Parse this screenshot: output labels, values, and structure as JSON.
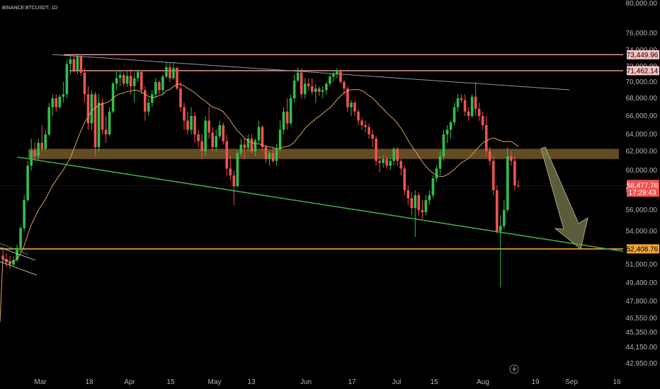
{
  "symbol": "BINANCE:BTCUSDT, 1D",
  "colors": {
    "background": "#000000",
    "up": "#26a69a",
    "up_bright": "#2fbf4a",
    "down": "#ef5350",
    "ma": "#d9a35a",
    "zone": "#b5893f",
    "support": "#f0a63a",
    "trendline_low": "#3fa84a",
    "trendline_high": "#9598a1",
    "level_line": "#f4a3a3",
    "arrow": "#7a7b4f",
    "axis_text": "#b2b5be"
  },
  "chart_data": {
    "type": "candlestick",
    "title": "",
    "xlabel": "",
    "ylabel": "",
    "ylim": [
      42000,
      80000
    ],
    "grid": false,
    "price_axis_ticks": [
      "80,000.00",
      "76,000.00",
      "74,000.00",
      "72,000.00",
      "70,000.00",
      "68,000.00",
      "66,000.00",
      "64,000.00",
      "62,000.00",
      "60,000.00",
      "58,000.00",
      "56,000.00",
      "54,000.00",
      "51,000.00",
      "49,400.00",
      "47,800.00",
      "46,550.00",
      "45,350.00",
      "44,150.00",
      "42,950.00"
    ],
    "date_axis_ticks": [
      "Mar",
      "18",
      "Apr",
      "15",
      "May",
      "13",
      "Jun",
      "17",
      "Jul",
      "15",
      "Aug",
      "19",
      "Sep",
      "16"
    ],
    "price_labels": {
      "level_high": "73,449.96",
      "level_mid": "71,462.14",
      "current_price": "58,477.76",
      "countdown": "17:29:43",
      "support": "52,408.76"
    },
    "resistance_zone": [
      61200,
      62300
    ],
    "support_level": 52408.76,
    "levels": [
      73449.96,
      71462.14
    ],
    "current_price": 58477.76,
    "ohlc": [
      {
        "o": 51800,
        "h": 52600,
        "l": 51200,
        "c": 51500
      },
      {
        "o": 51500,
        "h": 52000,
        "l": 50800,
        "c": 51200
      },
      {
        "o": 51200,
        "h": 51800,
        "l": 50600,
        "c": 51000
      },
      {
        "o": 51000,
        "h": 51700,
        "l": 50800,
        "c": 51400
      },
      {
        "o": 51400,
        "h": 52800,
        "l": 51200,
        "c": 52500
      },
      {
        "o": 52500,
        "h": 54500,
        "l": 52200,
        "c": 54300
      },
      {
        "o": 54300,
        "h": 57500,
        "l": 54000,
        "c": 57000
      },
      {
        "o": 57000,
        "h": 61000,
        "l": 56800,
        "c": 60500
      },
      {
        "o": 60500,
        "h": 63500,
        "l": 60000,
        "c": 62100
      },
      {
        "o": 62100,
        "h": 63000,
        "l": 61000,
        "c": 61500
      },
      {
        "o": 61500,
        "h": 63500,
        "l": 61000,
        "c": 63000
      },
      {
        "o": 63000,
        "h": 65000,
        "l": 62000,
        "c": 62300
      },
      {
        "o": 62300,
        "h": 64500,
        "l": 62000,
        "c": 64000
      },
      {
        "o": 64000,
        "h": 67500,
        "l": 63800,
        "c": 67000
      },
      {
        "o": 67000,
        "h": 68500,
        "l": 66000,
        "c": 68000
      },
      {
        "o": 68000,
        "h": 68500,
        "l": 66500,
        "c": 67000
      },
      {
        "o": 67000,
        "h": 68500,
        "l": 66800,
        "c": 68200
      },
      {
        "o": 68200,
        "h": 70000,
        "l": 67500,
        "c": 68500
      },
      {
        "o": 68500,
        "h": 72800,
        "l": 68000,
        "c": 72300
      },
      {
        "o": 72300,
        "h": 73450,
        "l": 71000,
        "c": 72900
      },
      {
        "o": 72900,
        "h": 73500,
        "l": 71200,
        "c": 71500
      },
      {
        "o": 71500,
        "h": 73400,
        "l": 71000,
        "c": 73200
      },
      {
        "o": 73200,
        "h": 73500,
        "l": 70800,
        "c": 71200
      },
      {
        "o": 71200,
        "h": 71800,
        "l": 67500,
        "c": 68500
      },
      {
        "o": 68500,
        "h": 69500,
        "l": 64500,
        "c": 65200
      },
      {
        "o": 65200,
        "h": 69000,
        "l": 64500,
        "c": 68500
      },
      {
        "o": 68500,
        "h": 68800,
        "l": 61500,
        "c": 62500
      },
      {
        "o": 62500,
        "h": 68500,
        "l": 62000,
        "c": 67500
      },
      {
        "o": 67500,
        "h": 68000,
        "l": 64000,
        "c": 64500
      },
      {
        "o": 64500,
        "h": 66000,
        "l": 63000,
        "c": 64000
      },
      {
        "o": 64000,
        "h": 67000,
        "l": 63800,
        "c": 66500
      },
      {
        "o": 66500,
        "h": 70000,
        "l": 66300,
        "c": 69800
      },
      {
        "o": 69800,
        "h": 71500,
        "l": 69000,
        "c": 70500
      },
      {
        "o": 70500,
        "h": 71500,
        "l": 69500,
        "c": 70900
      },
      {
        "o": 70900,
        "h": 71200,
        "l": 69500,
        "c": 69800
      },
      {
        "o": 69800,
        "h": 71500,
        "l": 69400,
        "c": 70800
      },
      {
        "o": 70800,
        "h": 71700,
        "l": 68500,
        "c": 69500
      },
      {
        "o": 69500,
        "h": 71200,
        "l": 67500,
        "c": 70500
      },
      {
        "o": 70500,
        "h": 71600,
        "l": 70000,
        "c": 71300
      },
      {
        "o": 71300,
        "h": 71500,
        "l": 68500,
        "c": 69000
      },
      {
        "o": 69000,
        "h": 69500,
        "l": 65500,
        "c": 66500
      },
      {
        "o": 66500,
        "h": 68000,
        "l": 66000,
        "c": 67500
      },
      {
        "o": 67500,
        "h": 69000,
        "l": 67000,
        "c": 68500
      },
      {
        "o": 68500,
        "h": 70500,
        "l": 68000,
        "c": 70000
      },
      {
        "o": 70000,
        "h": 70200,
        "l": 68500,
        "c": 69000
      },
      {
        "o": 69000,
        "h": 71000,
        "l": 68500,
        "c": 70700
      },
      {
        "o": 70700,
        "h": 72500,
        "l": 70500,
        "c": 71900
      },
      {
        "o": 71900,
        "h": 72500,
        "l": 70000,
        "c": 70500
      },
      {
        "o": 70500,
        "h": 72500,
        "l": 70300,
        "c": 71800
      },
      {
        "o": 71800,
        "h": 72000,
        "l": 69000,
        "c": 69200
      },
      {
        "o": 69200,
        "h": 70000,
        "l": 66500,
        "c": 67000
      },
      {
        "o": 67000,
        "h": 67500,
        "l": 64500,
        "c": 65500
      },
      {
        "o": 65500,
        "h": 66500,
        "l": 64000,
        "c": 64500
      },
      {
        "o": 64500,
        "h": 67000,
        "l": 64000,
        "c": 66000
      },
      {
        "o": 66000,
        "h": 66500,
        "l": 63000,
        "c": 64000
      },
      {
        "o": 64000,
        "h": 64500,
        "l": 62500,
        "c": 63200
      },
      {
        "o": 63200,
        "h": 64000,
        "l": 61200,
        "c": 62000
      },
      {
        "o": 62000,
        "h": 66000,
        "l": 61500,
        "c": 65500
      },
      {
        "o": 65500,
        "h": 67000,
        "l": 63500,
        "c": 64200
      },
      {
        "o": 64200,
        "h": 64800,
        "l": 62000,
        "c": 62500
      },
      {
        "o": 62500,
        "h": 64500,
        "l": 62000,
        "c": 63800
      },
      {
        "o": 63800,
        "h": 65500,
        "l": 63500,
        "c": 65000
      },
      {
        "o": 65000,
        "h": 65300,
        "l": 62800,
        "c": 63200
      },
      {
        "o": 63200,
        "h": 64000,
        "l": 59500,
        "c": 60200
      },
      {
        "o": 60200,
        "h": 61500,
        "l": 59000,
        "c": 59500
      },
      {
        "o": 59500,
        "h": 60000,
        "l": 56500,
        "c": 58400
      },
      {
        "o": 58400,
        "h": 62000,
        "l": 58300,
        "c": 61800
      },
      {
        "o": 61800,
        "h": 63500,
        "l": 61500,
        "c": 62800
      },
      {
        "o": 62800,
        "h": 63500,
        "l": 61200,
        "c": 62400
      },
      {
        "o": 62400,
        "h": 64000,
        "l": 62000,
        "c": 63500
      },
      {
        "o": 63500,
        "h": 64000,
        "l": 61800,
        "c": 62000
      },
      {
        "o": 62000,
        "h": 63500,
        "l": 61500,
        "c": 63300
      },
      {
        "o": 63300,
        "h": 65500,
        "l": 63000,
        "c": 64800
      },
      {
        "o": 64800,
        "h": 65000,
        "l": 62000,
        "c": 62500
      },
      {
        "o": 62500,
        "h": 62800,
        "l": 60800,
        "c": 61200
      },
      {
        "o": 61200,
        "h": 62000,
        "l": 60500,
        "c": 61800
      },
      {
        "o": 61800,
        "h": 62500,
        "l": 60800,
        "c": 61000
      },
      {
        "o": 61000,
        "h": 62800,
        "l": 60500,
        "c": 62300
      },
      {
        "o": 62300,
        "h": 65500,
        "l": 62000,
        "c": 64500
      },
      {
        "o": 64500,
        "h": 67000,
        "l": 64000,
        "c": 66500
      },
      {
        "o": 66500,
        "h": 68000,
        "l": 64500,
        "c": 65200
      },
      {
        "o": 65200,
        "h": 68500,
        "l": 65000,
        "c": 68000
      },
      {
        "o": 68000,
        "h": 71000,
        "l": 67500,
        "c": 70200
      },
      {
        "o": 70200,
        "h": 71900,
        "l": 70000,
        "c": 71200
      },
      {
        "o": 71200,
        "h": 71800,
        "l": 68000,
        "c": 68500
      },
      {
        "o": 68500,
        "h": 70500,
        "l": 68000,
        "c": 69800
      },
      {
        "o": 69800,
        "h": 70500,
        "l": 69000,
        "c": 69500
      },
      {
        "o": 69500,
        "h": 70500,
        "l": 68500,
        "c": 68800
      },
      {
        "o": 68800,
        "h": 69800,
        "l": 67500,
        "c": 69200
      },
      {
        "o": 69200,
        "h": 69500,
        "l": 68300,
        "c": 68800
      },
      {
        "o": 68800,
        "h": 69500,
        "l": 68000,
        "c": 69000
      },
      {
        "o": 69000,
        "h": 70000,
        "l": 68500,
        "c": 69800
      },
      {
        "o": 69800,
        "h": 71000,
        "l": 69500,
        "c": 70700
      },
      {
        "o": 70700,
        "h": 71300,
        "l": 70000,
        "c": 71000
      },
      {
        "o": 71000,
        "h": 71800,
        "l": 70500,
        "c": 71500
      },
      {
        "o": 71500,
        "h": 71700,
        "l": 69800,
        "c": 70000
      },
      {
        "o": 70000,
        "h": 70300,
        "l": 68500,
        "c": 69200
      },
      {
        "o": 69200,
        "h": 69500,
        "l": 66500,
        "c": 67000
      },
      {
        "o": 67000,
        "h": 67800,
        "l": 66000,
        "c": 67500
      },
      {
        "o": 67500,
        "h": 67700,
        "l": 66000,
        "c": 66500
      },
      {
        "o": 66500,
        "h": 66800,
        "l": 65000,
        "c": 65500
      },
      {
        "o": 65500,
        "h": 65800,
        "l": 64500,
        "c": 65000
      },
      {
        "o": 65000,
        "h": 65500,
        "l": 64200,
        "c": 64800
      },
      {
        "o": 64800,
        "h": 65200,
        "l": 63500,
        "c": 64000
      },
      {
        "o": 64000,
        "h": 64500,
        "l": 62500,
        "c": 63500
      },
      {
        "o": 63500,
        "h": 63800,
        "l": 60500,
        "c": 61000
      },
      {
        "o": 61000,
        "h": 61500,
        "l": 59800,
        "c": 60800
      },
      {
        "o": 60800,
        "h": 61600,
        "l": 60300,
        "c": 61200
      },
      {
        "o": 61200,
        "h": 61500,
        "l": 60200,
        "c": 60500
      },
      {
        "o": 60500,
        "h": 61300,
        "l": 60000,
        "c": 61000
      },
      {
        "o": 61000,
        "h": 62500,
        "l": 60500,
        "c": 62300
      },
      {
        "o": 62300,
        "h": 62500,
        "l": 60500,
        "c": 61000
      },
      {
        "o": 61000,
        "h": 61200,
        "l": 59500,
        "c": 60200
      },
      {
        "o": 60200,
        "h": 60500,
        "l": 57500,
        "c": 58000
      },
      {
        "o": 58000,
        "h": 58500,
        "l": 56500,
        "c": 57200
      },
      {
        "o": 57200,
        "h": 57800,
        "l": 55500,
        "c": 56200
      },
      {
        "o": 56200,
        "h": 58000,
        "l": 53500,
        "c": 57500
      },
      {
        "o": 57500,
        "h": 57800,
        "l": 55500,
        "c": 56000
      },
      {
        "o": 56000,
        "h": 57000,
        "l": 55200,
        "c": 55800
      },
      {
        "o": 55800,
        "h": 57500,
        "l": 55500,
        "c": 57000
      },
      {
        "o": 57000,
        "h": 58000,
        "l": 56500,
        "c": 57500
      },
      {
        "o": 57500,
        "h": 59500,
        "l": 57200,
        "c": 59200
      },
      {
        "o": 59200,
        "h": 60500,
        "l": 58800,
        "c": 60200
      },
      {
        "o": 60200,
        "h": 62000,
        "l": 59500,
        "c": 61500
      },
      {
        "o": 61500,
        "h": 64500,
        "l": 61000,
        "c": 64000
      },
      {
        "o": 64000,
        "h": 65000,
        "l": 63000,
        "c": 64500
      },
      {
        "o": 64500,
        "h": 65500,
        "l": 63500,
        "c": 65300
      },
      {
        "o": 65300,
        "h": 67500,
        "l": 65000,
        "c": 67000
      },
      {
        "o": 67000,
        "h": 68500,
        "l": 66500,
        "c": 68000
      },
      {
        "o": 68000,
        "h": 68500,
        "l": 67500,
        "c": 67800
      },
      {
        "o": 67800,
        "h": 68500,
        "l": 66000,
        "c": 66500
      },
      {
        "o": 66500,
        "h": 67000,
        "l": 65500,
        "c": 66000
      },
      {
        "o": 66000,
        "h": 68500,
        "l": 65800,
        "c": 68200
      },
      {
        "o": 68200,
        "h": 70000,
        "l": 66000,
        "c": 66800
      },
      {
        "o": 66800,
        "h": 67500,
        "l": 65500,
        "c": 66000
      },
      {
        "o": 66000,
        "h": 66500,
        "l": 64500,
        "c": 65000
      },
      {
        "o": 65000,
        "h": 66000,
        "l": 61500,
        "c": 62000
      },
      {
        "o": 62000,
        "h": 62500,
        "l": 60500,
        "c": 61000
      },
      {
        "o": 61000,
        "h": 61500,
        "l": 57500,
        "c": 58000
      },
      {
        "o": 58000,
        "h": 58500,
        "l": 53800,
        "c": 54000
      },
      {
        "o": 54000,
        "h": 55500,
        "l": 49000,
        "c": 54500
      },
      {
        "o": 54500,
        "h": 57000,
        "l": 54200,
        "c": 56000
      },
      {
        "o": 56000,
        "h": 62500,
        "l": 55800,
        "c": 61500
      },
      {
        "o": 61500,
        "h": 62000,
        "l": 60500,
        "c": 61000
      },
      {
        "o": 61000,
        "h": 61500,
        "l": 58000,
        "c": 58500
      },
      {
        "o": 58500,
        "h": 59000,
        "l": 58200,
        "c": 58478
      }
    ]
  }
}
